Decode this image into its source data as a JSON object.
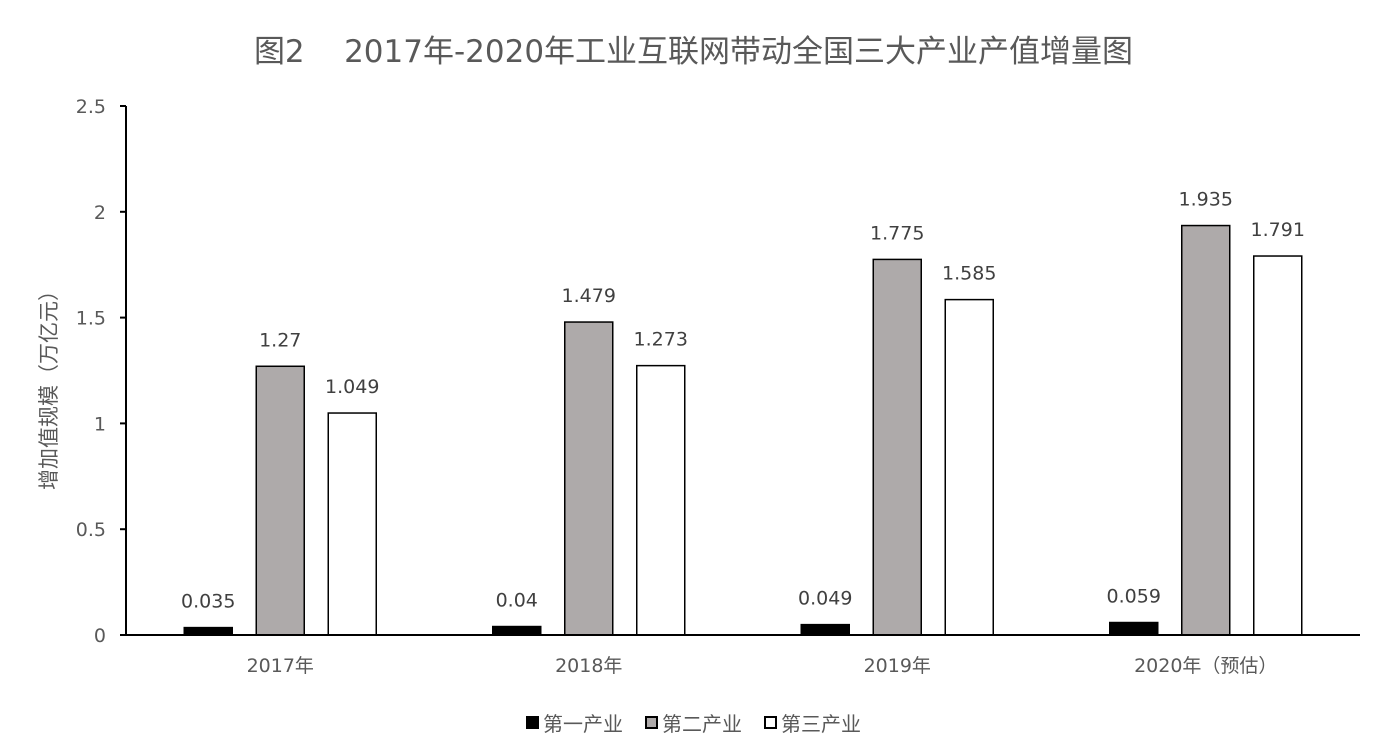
{
  "chart_data": {
    "type": "bar",
    "title": "图2    2017年-2020年工业互联网带动全国三大产业产值增量图",
    "xlabel": "",
    "ylabel": "增加值规模（万亿元）",
    "categories": [
      "2017年",
      "2018年",
      "2019年",
      "2020年（预估）"
    ],
    "ylim": [
      0,
      2.5
    ],
    "yticks": [
      "0",
      "0.5",
      "1",
      "1.5",
      "2",
      "2.5"
    ],
    "grid": false,
    "legend_position": "bottom",
    "series": [
      {
        "name": "第一产业",
        "color": "#000000",
        "values": [
          0.035,
          0.04,
          0.049,
          0.059
        ],
        "labels": [
          "0.035",
          "0.04",
          "0.049",
          "0.059"
        ]
      },
      {
        "name": "第二产业",
        "color": "#aeaaaa",
        "values": [
          1.27,
          1.479,
          1.775,
          1.935
        ],
        "labels": [
          "1.27",
          "1.479",
          "1.775",
          "1.935"
        ]
      },
      {
        "name": "第三产业",
        "color": "#ffffff",
        "values": [
          1.049,
          1.273,
          1.585,
          1.791
        ],
        "labels": [
          "1.049",
          "1.273",
          "1.585",
          "1.791"
        ]
      }
    ]
  }
}
